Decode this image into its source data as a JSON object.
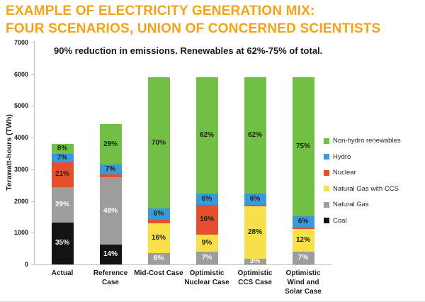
{
  "title": {
    "line1": "EXAMPLE OF ELECTRICITY GENERATION MIX:",
    "line2": "FOUR SCENARIOS, UNION OF CONCERNED SCIENTISTS",
    "color": "#F5A21B"
  },
  "subtitle": "90% reduction in emissions. Renewables at 62%-75% of total.",
  "chart_data": {
    "type": "bar",
    "stacked": true,
    "ylabel": "Terawatt-hours (TWh)",
    "ylim": [
      0,
      7000
    ],
    "yticks": [
      "0",
      "1000",
      "2000",
      "3000",
      "4000",
      "5000",
      "6000",
      "7000"
    ],
    "grid": false,
    "legend_position": "right",
    "legend": [
      {
        "label": "Non-hydro renewables",
        "color": "#71BF44"
      },
      {
        "label": "Hydro",
        "color": "#3A9AD9"
      },
      {
        "label": "Nuclear",
        "color": "#E4502E"
      },
      {
        "label": "Natural Gas with CCS",
        "color": "#F7E04A"
      },
      {
        "label": "Natural Gas",
        "color": "#9D9D9C"
      },
      {
        "label": "Coal",
        "color": "#131313"
      }
    ],
    "series_colors": {
      "Non-hydro renewables": "#71BF44",
      "Hydro": "#3A9AD9",
      "Nuclear": "#E4502E",
      "Natural Gas with CCS": "#F7E04A",
      "Natural Gas": "#9D9D9C",
      "Coal": "#131313"
    },
    "white_label_series": [
      "Coal",
      "Natural Gas"
    ],
    "categories": [
      "Actual",
      "Reference Case",
      "Mid-Cost Case",
      "Optimistic Nuclear Case",
      "Optimistic CCS Case",
      "Optimistic Wind and Solar Case"
    ],
    "bars": [
      {
        "category": "Actual",
        "label_lines": [
          "Actual"
        ],
        "total_twh": 3800,
        "segments": [
          {
            "name": "Coal",
            "pct": 35,
            "label": "35%"
          },
          {
            "name": "Natural Gas",
            "pct": 29,
            "label": "29%"
          },
          {
            "name": "Nuclear",
            "pct": 21,
            "label": "21%"
          },
          {
            "name": "Hydro",
            "pct": 7,
            "label": "7%"
          },
          {
            "name": "Non-hydro renewables",
            "pct": 8,
            "label": "8%"
          }
        ]
      },
      {
        "category": "Reference Case",
        "label_lines": [
          "Reference",
          "Case"
        ],
        "total_twh": 4430,
        "segments": [
          {
            "name": "Coal",
            "pct": 14,
            "label": "14%"
          },
          {
            "name": "Natural Gas",
            "pct": 48,
            "label": "48%"
          },
          {
            "name": "Nuclear",
            "pct": 2,
            "label": ""
          },
          {
            "name": "Hydro",
            "pct": 7,
            "label": "7%"
          },
          {
            "name": "Non-hydro renewables",
            "pct": 29,
            "label": "29%"
          }
        ]
      },
      {
        "category": "Mid-Cost Case",
        "label_lines": [
          "Mid-Cost Case"
        ],
        "total_twh": 5900,
        "segments": [
          {
            "name": "Natural Gas",
            "pct": 6,
            "label": "6%"
          },
          {
            "name": "Natural Gas with CCS",
            "pct": 16,
            "label": "16%"
          },
          {
            "name": "Nuclear",
            "pct": 2,
            "label": ""
          },
          {
            "name": "Hydro",
            "pct": 6,
            "label": "6%"
          },
          {
            "name": "Non-hydro renewables",
            "pct": 70,
            "label": "70%"
          }
        ]
      },
      {
        "category": "Optimistic Nuclear Case",
        "label_lines": [
          "Optimistic",
          "Nuclear Case"
        ],
        "total_twh": 5900,
        "segments": [
          {
            "name": "Natural Gas",
            "pct": 7,
            "label": "7%"
          },
          {
            "name": "Natural Gas with CCS",
            "pct": 9,
            "label": "9%"
          },
          {
            "name": "Nuclear",
            "pct": 16,
            "label": "16%"
          },
          {
            "name": "Hydro",
            "pct": 6,
            "label": "6%"
          },
          {
            "name": "Non-hydro renewables",
            "pct": 62,
            "label": "62%"
          }
        ]
      },
      {
        "category": "Optimistic CCS Case",
        "label_lines": [
          "Optimistic",
          "CCS Case"
        ],
        "total_twh": 5900,
        "segments": [
          {
            "name": "Natural Gas",
            "pct": 3,
            "label": "3%"
          },
          {
            "name": "Natural Gas with CCS",
            "pct": 28,
            "label": "28%"
          },
          {
            "name": "Nuclear",
            "pct": 1,
            "label": ""
          },
          {
            "name": "Hydro",
            "pct": 6,
            "label": "6%"
          },
          {
            "name": "Non-hydro renewables",
            "pct": 62,
            "label": "62%"
          }
        ]
      },
      {
        "category": "Optimistic Wind and Solar Case",
        "label_lines": [
          "Optimistic",
          "Wind and",
          "Solar Case"
        ],
        "total_twh": 5900,
        "segments": [
          {
            "name": "Natural Gas",
            "pct": 7,
            "label": "7%"
          },
          {
            "name": "Natural Gas with CCS",
            "pct": 12,
            "label": "12%"
          },
          {
            "name": "Nuclear",
            "pct": 1,
            "label": ""
          },
          {
            "name": "Hydro",
            "pct": 6,
            "label": "6%"
          },
          {
            "name": "Non-hydro renewables",
            "pct": 75,
            "label": "75%"
          }
        ]
      }
    ]
  }
}
